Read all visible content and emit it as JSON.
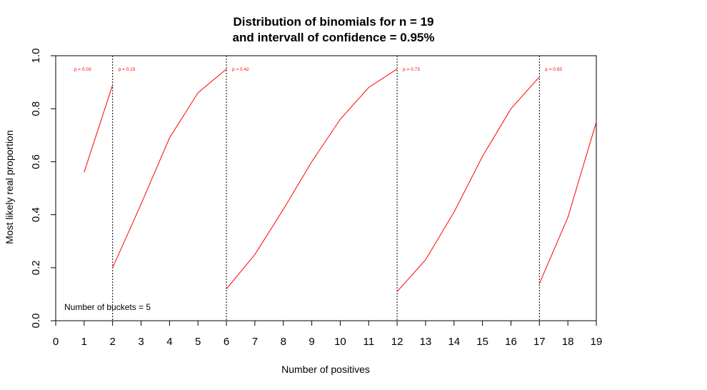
{
  "chart_data": {
    "type": "line",
    "title": [
      "Distribution of binomials for n =  19",
      " and intervall of confidence = 0.95%"
    ],
    "xlabel": "Number of positives",
    "ylabel": "Most likely real proportion",
    "xlim": [
      0,
      19
    ],
    "ylim": [
      0,
      1
    ],
    "x_ticks": [
      0,
      1,
      2,
      3,
      4,
      5,
      6,
      7,
      8,
      9,
      10,
      11,
      12,
      13,
      14,
      15,
      16,
      17,
      18,
      19
    ],
    "y_ticks": [
      "0.0",
      "0.2",
      "0.4",
      "0.6",
      "0.8",
      "1.0"
    ],
    "y_tick_values": [
      0,
      0.2,
      0.4,
      0.6,
      0.8,
      1.0
    ],
    "line_color": "#ff0000",
    "segments": [
      {
        "x": [
          1,
          2
        ],
        "y": [
          0.56,
          0.89
        ]
      },
      {
        "x": [
          2,
          3,
          4,
          5,
          6
        ],
        "y": [
          0.2,
          0.44,
          0.69,
          0.86,
          0.95
        ]
      },
      {
        "x": [
          6,
          7,
          8,
          9,
          10,
          11,
          12
        ],
        "y": [
          0.12,
          0.25,
          0.42,
          0.6,
          0.76,
          0.88,
          0.95
        ]
      },
      {
        "x": [
          12,
          13,
          14,
          15,
          16,
          17
        ],
        "y": [
          0.11,
          0.23,
          0.41,
          0.62,
          0.8,
          0.92
        ]
      },
      {
        "x": [
          17,
          18,
          19
        ],
        "y": [
          0.14,
          0.39,
          0.75
        ]
      }
    ],
    "vlines": [
      2,
      6,
      12,
      17
    ],
    "p_labels": [
      {
        "x": 0.65,
        "text": "p = 0.03"
      },
      {
        "x": 2.2,
        "text": "p = 0.15"
      },
      {
        "x": 6.2,
        "text": "p = 0.42"
      },
      {
        "x": 12.2,
        "text": "p = 0.73"
      },
      {
        "x": 17.2,
        "text": "p = 0.93"
      }
    ],
    "annotation": "Number of buckets = 5",
    "grid": false
  }
}
